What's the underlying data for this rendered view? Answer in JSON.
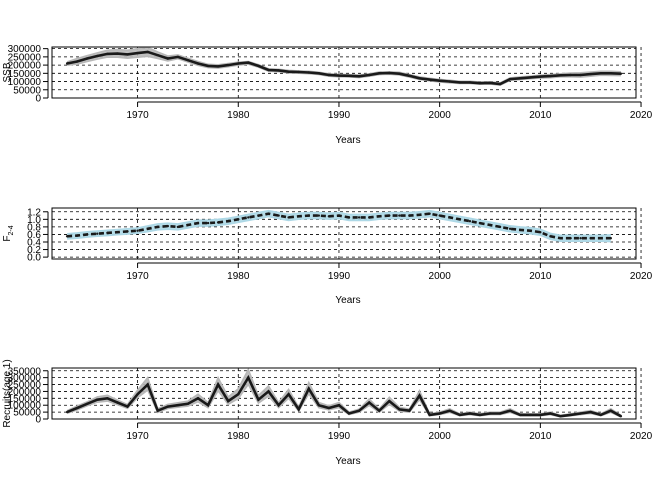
{
  "chart_data": [
    {
      "type": "line",
      "panel": "ssb",
      "ylabel": "SSB",
      "xlabel": "Years",
      "xlim": [
        1961.5,
        2019.5
      ],
      "ylim": [
        0,
        310000
      ],
      "x_ticks": [
        1970,
        1980,
        1990,
        2000,
        2010,
        2020
      ],
      "y_ticks": [
        0,
        50000,
        100000,
        150000,
        200000,
        250000,
        300000
      ],
      "y_tick_labels": [
        "0",
        "50000",
        "100000",
        "150000",
        "200000",
        "250000",
        "300000"
      ],
      "grid": true,
      "band_color": "#b8b8b8",
      "line_color": "#1a1a1a",
      "x": [
        1963,
        1964,
        1965,
        1966,
        1967,
        1968,
        1969,
        1970,
        1971,
        1972,
        1973,
        1974,
        1975,
        1976,
        1977,
        1978,
        1979,
        1980,
        1981,
        1982,
        1983,
        1984,
        1985,
        1986,
        1987,
        1988,
        1989,
        1990,
        1991,
        1992,
        1993,
        1994,
        1995,
        1996,
        1997,
        1998,
        1999,
        2000,
        2001,
        2002,
        2003,
        2004,
        2005,
        2006,
        2007,
        2008,
        2009,
        2010,
        2011,
        2012,
        2013,
        2014,
        2015,
        2016,
        2017,
        2018
      ],
      "series": [
        {
          "values": [
            210000,
            222000,
            240000,
            255000,
            268000,
            270000,
            265000,
            273000,
            280000,
            260000,
            240000,
            250000,
            230000,
            210000,
            195000,
            192000,
            200000,
            210000,
            215000,
            195000,
            170000,
            168000,
            160000,
            158000,
            155000,
            150000,
            140000,
            136000,
            135000,
            132000,
            140000,
            150000,
            152000,
            148000,
            135000,
            120000,
            112000,
            105000,
            100000,
            95000,
            95000,
            90000,
            92000,
            85000,
            115000,
            120000,
            125000,
            130000,
            133000,
            138000,
            140000,
            140000,
            145000,
            150000,
            150000,
            148000
          ]
        },
        {
          "name": "upper",
          "values": [
            220000,
            240000,
            258000,
            275000,
            290000,
            295000,
            290000,
            300000,
            308000,
            280000,
            255000,
            262000,
            242000,
            222000,
            205000,
            202000,
            210000,
            218000,
            222000,
            203000,
            178000,
            175000,
            168000,
            165000,
            162000,
            157000,
            148000,
            144000,
            142000,
            140000,
            148000,
            158000,
            160000,
            156000,
            143000,
            128000,
            120000,
            113000,
            108000,
            102000,
            102000,
            97000,
            99000,
            92000,
            123000,
            128000,
            133000,
            139000,
            143000,
            148000,
            152000,
            153000,
            158000,
            162000,
            163000,
            160000
          ]
        },
        {
          "name": "lower",
          "values": [
            200000,
            206000,
            222000,
            236000,
            248000,
            248000,
            242000,
            248000,
            253000,
            240000,
            225000,
            238000,
            218000,
            198000,
            185000,
            182000,
            190000,
            200000,
            206000,
            187000,
            162000,
            160000,
            152000,
            150000,
            148000,
            143000,
            132000,
            128000,
            128000,
            124000,
            132000,
            142000,
            144000,
            140000,
            127000,
            112000,
            104000,
            97000,
            92000,
            88000,
            88000,
            83000,
            85000,
            78000,
            107000,
            112000,
            117000,
            121000,
            123000,
            128000,
            128000,
            127000,
            132000,
            138000,
            137000,
            136000
          ]
        }
      ]
    },
    {
      "type": "line",
      "panel": "fbar",
      "ylabel": "F2-4",
      "ylabel_main": "F",
      "ylabel_sub": "2-4",
      "xlabel": "Years",
      "xlim": [
        1961.5,
        2019.5
      ],
      "ylim": [
        -0.05,
        1.3
      ],
      "x_ticks": [
        1970,
        1980,
        1990,
        2000,
        2010,
        2020
      ],
      "y_ticks": [
        0.0,
        0.2,
        0.4,
        0.6,
        0.8,
        1.0,
        1.2
      ],
      "y_tick_labels": [
        "0.0",
        "0.2",
        "0.4",
        "0.6",
        "0.8",
        "1.0",
        "1.2"
      ],
      "grid": true,
      "band_color": "#add8e6",
      "line_color": "#1a1a1a",
      "x": [
        1963,
        1964,
        1965,
        1966,
        1967,
        1968,
        1969,
        1970,
        1971,
        1972,
        1973,
        1974,
        1975,
        1976,
        1977,
        1978,
        1979,
        1980,
        1981,
        1982,
        1983,
        1984,
        1985,
        1986,
        1987,
        1988,
        1989,
        1990,
        1991,
        1992,
        1993,
        1994,
        1995,
        1996,
        1997,
        1998,
        1999,
        2000,
        2001,
        2002,
        2003,
        2004,
        2005,
        2006,
        2007,
        2008,
        2009,
        2010,
        2011,
        2012,
        2013,
        2014,
        2015,
        2016,
        2017
      ],
      "series": [
        {
          "values": [
            0.55,
            0.57,
            0.6,
            0.62,
            0.64,
            0.66,
            0.68,
            0.7,
            0.75,
            0.8,
            0.82,
            0.8,
            0.85,
            0.9,
            0.9,
            0.92,
            0.95,
            1.0,
            1.05,
            1.1,
            1.15,
            1.1,
            1.05,
            1.08,
            1.1,
            1.1,
            1.08,
            1.1,
            1.05,
            1.05,
            1.05,
            1.08,
            1.1,
            1.1,
            1.1,
            1.12,
            1.15,
            1.1,
            1.05,
            1.0,
            0.95,
            0.9,
            0.85,
            0.8,
            0.75,
            0.72,
            0.7,
            0.66,
            0.55,
            0.5,
            0.5,
            0.5,
            0.5,
            0.5,
            0.5
          ]
        },
        {
          "name": "upper",
          "values": [
            0.62,
            0.64,
            0.67,
            0.69,
            0.71,
            0.73,
            0.75,
            0.77,
            0.83,
            0.88,
            0.9,
            0.88,
            0.93,
            0.98,
            0.98,
            1.0,
            1.03,
            1.08,
            1.13,
            1.18,
            1.23,
            1.18,
            1.13,
            1.16,
            1.18,
            1.18,
            1.16,
            1.18,
            1.13,
            1.13,
            1.13,
            1.16,
            1.18,
            1.18,
            1.18,
            1.2,
            1.23,
            1.18,
            1.13,
            1.08,
            1.03,
            0.98,
            0.93,
            0.88,
            0.83,
            0.8,
            0.78,
            0.74,
            0.63,
            0.58,
            0.58,
            0.58,
            0.58,
            0.58,
            0.59
          ]
        },
        {
          "name": "lower",
          "values": [
            0.48,
            0.5,
            0.53,
            0.55,
            0.57,
            0.59,
            0.61,
            0.63,
            0.67,
            0.72,
            0.74,
            0.72,
            0.77,
            0.82,
            0.82,
            0.84,
            0.87,
            0.92,
            0.97,
            1.02,
            1.07,
            1.02,
            0.97,
            1.0,
            1.02,
            1.02,
            1.0,
            1.02,
            0.97,
            0.97,
            0.97,
            1.0,
            1.02,
            1.02,
            1.02,
            1.04,
            1.07,
            1.02,
            0.97,
            0.92,
            0.87,
            0.82,
            0.77,
            0.72,
            0.67,
            0.64,
            0.62,
            0.58,
            0.47,
            0.42,
            0.42,
            0.42,
            0.42,
            0.42,
            0.41
          ]
        }
      ]
    },
    {
      "type": "line",
      "panel": "recruitment",
      "ylabel": "Recruits(age 1)",
      "xlabel": "Years",
      "xlim": [
        1961.5,
        2019.5
      ],
      "ylim": [
        0,
        370000
      ],
      "x_ticks": [
        1970,
        1980,
        1990,
        2000,
        2010,
        2020
      ],
      "y_ticks": [
        0,
        50000,
        100000,
        150000,
        200000,
        250000,
        300000,
        350000
      ],
      "y_tick_labels": [
        "0",
        "50000",
        "100000",
        "150000",
        "200000",
        "250000",
        "300000",
        "350000"
      ],
      "grid": true,
      "band_color": "#b8b8b8",
      "line_color": "#1a1a1a",
      "x": [
        1963,
        1964,
        1965,
        1966,
        1967,
        1968,
        1969,
        1970,
        1971,
        1972,
        1973,
        1974,
        1975,
        1976,
        1977,
        1978,
        1979,
        1980,
        1981,
        1982,
        1983,
        1984,
        1985,
        1986,
        1987,
        1988,
        1989,
        1990,
        1991,
        1992,
        1993,
        1994,
        1995,
        1996,
        1997,
        1998,
        1999,
        2000,
        2001,
        2002,
        2003,
        2004,
        2005,
        2006,
        2007,
        2008,
        2009,
        2010,
        2011,
        2012,
        2013,
        2014,
        2015,
        2016,
        2017,
        2018
      ],
      "series": [
        {
          "values": [
            50000,
            80000,
            110000,
            140000,
            150000,
            120000,
            90000,
            180000,
            250000,
            60000,
            90000,
            100000,
            110000,
            150000,
            100000,
            250000,
            130000,
            180000,
            300000,
            140000,
            200000,
            100000,
            180000,
            70000,
            220000,
            100000,
            80000,
            100000,
            40000,
            60000,
            120000,
            60000,
            130000,
            70000,
            60000,
            170000,
            30000,
            40000,
            60000,
            30000,
            40000,
            30000,
            40000,
            40000,
            60000,
            30000,
            30000,
            30000,
            40000,
            20000,
            30000,
            40000,
            50000,
            30000,
            60000,
            20000
          ]
        },
        {
          "name": "upper",
          "values": [
            60000,
            95000,
            125000,
            160000,
            172000,
            138000,
            105000,
            210000,
            300000,
            75000,
            106000,
            118000,
            130000,
            180000,
            120000,
            300000,
            160000,
            220000,
            360000,
            170000,
            240000,
            120000,
            215000,
            85000,
            265000,
            120000,
            96000,
            120000,
            50000,
            72000,
            145000,
            72000,
            158000,
            85000,
            72000,
            205000,
            38000,
            50000,
            74000,
            38000,
            50000,
            38000,
            50000,
            50000,
            74000,
            38000,
            38000,
            38000,
            50000,
            26000,
            38000,
            50000,
            62000,
            38000,
            74000,
            26000
          ]
        },
        {
          "name": "lower",
          "values": [
            41000,
            66000,
            96000,
            122000,
            130000,
            104000,
            77000,
            155000,
            210000,
            48000,
            76000,
            85000,
            93000,
            125000,
            82000,
            205000,
            106000,
            148000,
            250000,
            115000,
            166000,
            82000,
            150000,
            57000,
            182000,
            82000,
            66000,
            82000,
            32000,
            49000,
            98000,
            49000,
            106000,
            57000,
            49000,
            140000,
            24000,
            32000,
            48000,
            24000,
            32000,
            24000,
            32000,
            32000,
            48000,
            24000,
            24000,
            24000,
            32000,
            15000,
            24000,
            32000,
            40000,
            24000,
            48000,
            15000
          ]
        }
      ]
    }
  ]
}
